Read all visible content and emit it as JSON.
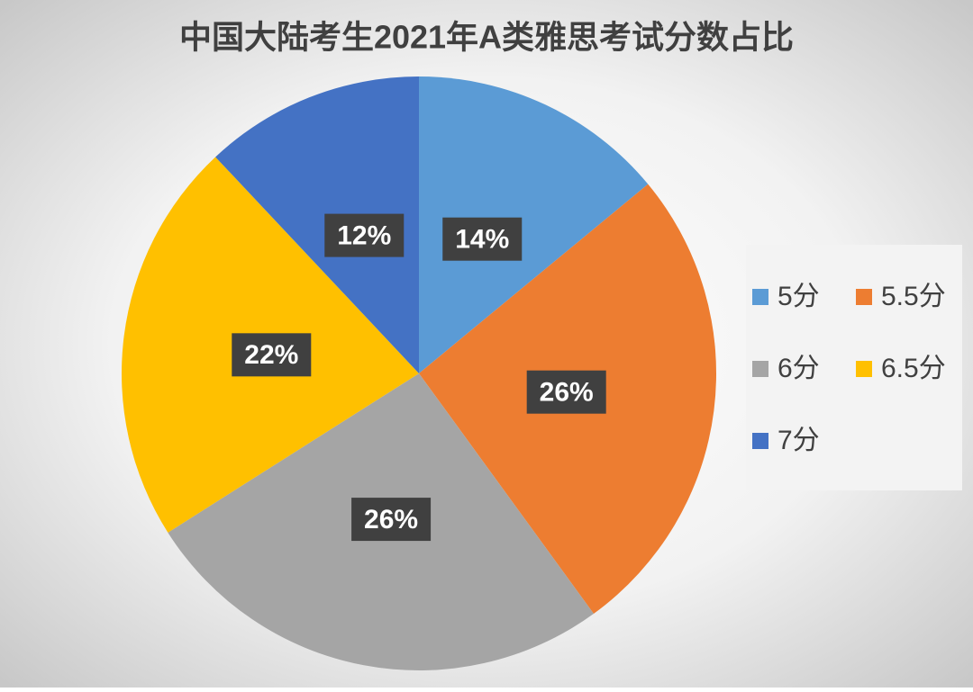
{
  "chart_data": {
    "type": "pie",
    "title": "中国大陆考生2021年A类雅思考试分数占比",
    "categories": [
      "5分",
      "5.5分",
      "6分",
      "6.5分",
      "7分"
    ],
    "values": [
      14,
      26,
      26,
      22,
      12
    ],
    "value_labels": [
      "14%",
      "26%",
      "26%",
      "22%",
      "12%"
    ],
    "colors": [
      "#5b9bd5",
      "#ed7d31",
      "#a5a5a5",
      "#ffc000",
      "#4472c4"
    ],
    "legend": "right"
  }
}
